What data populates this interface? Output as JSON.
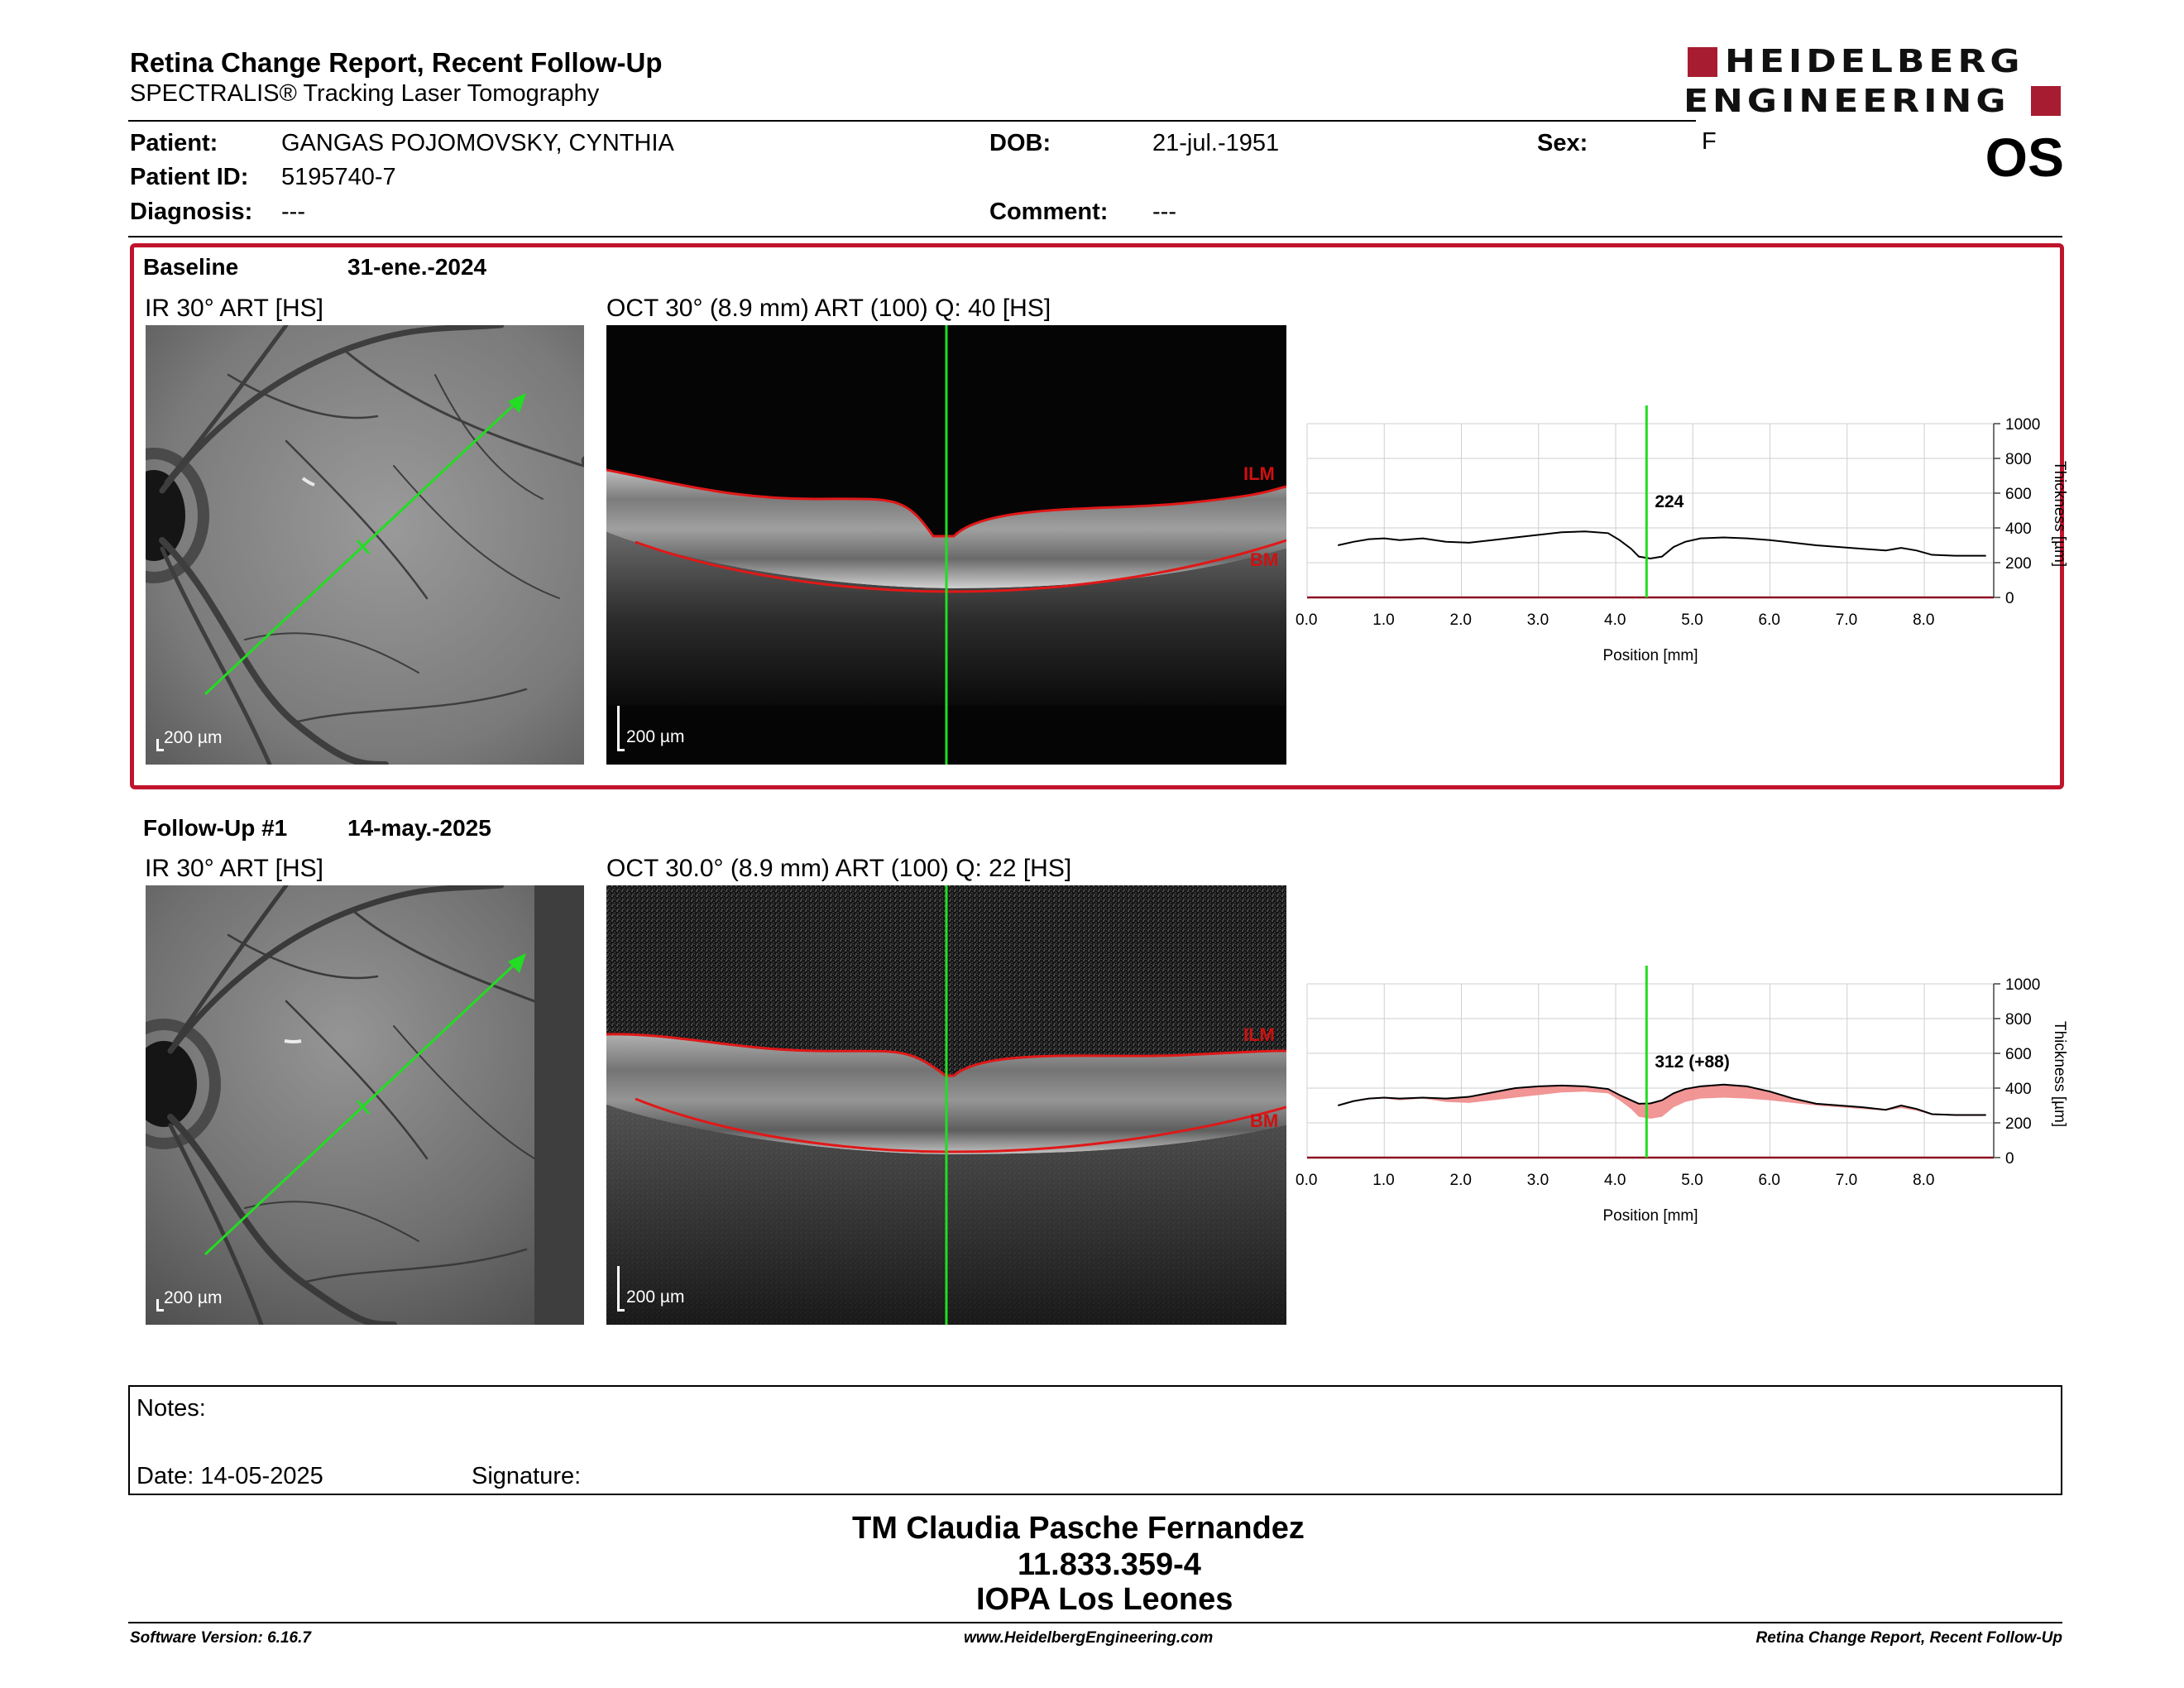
{
  "header": {
    "title": "Retina Change Report, Recent Follow-Up",
    "subtitle": "SPECTRALIS® Tracking Laser Tomography",
    "logo_line1": "HEIDELBERG",
    "logo_line2": "ENGINEERING",
    "eye": "OS"
  },
  "patient": {
    "patient_label": "Patient:",
    "patient_value": "GANGAS POJOMOVSKY, CYNTHIA",
    "id_label": "Patient ID:",
    "id_value": "5195740-7",
    "diagnosis_label": "Diagnosis:",
    "diagnosis_value": "---",
    "dob_label": "DOB:",
    "dob_value": "21-jul.-1951",
    "comment_label": "Comment:",
    "comment_value": "---",
    "sex_label": "Sex:",
    "sex_value": "F"
  },
  "baseline": {
    "label": "Baseline",
    "date": "31-ene.-2024",
    "ir_title": "IR 30° ART [HS]",
    "oct_title": "OCT 30° (8.9 mm) ART (100) Q: 40 [HS]",
    "scale": "200 µm",
    "ilm": "ILM",
    "bm": "BM"
  },
  "followup": {
    "label": "Follow-Up #1",
    "date": "14-may.-2025",
    "ir_title": "IR 30° ART [HS]",
    "oct_title": "OCT 30.0° (8.9 mm) ART (100) Q: 22 [HS]",
    "scale": "200 µm",
    "ilm": "ILM",
    "bm": "BM"
  },
  "chart_data": [
    {
      "type": "line",
      "xlabel": "Position [mm]",
      "ylabel": "Thickness [µm]",
      "xlim": [
        0,
        8.9
      ],
      "ylim": [
        0,
        1000
      ],
      "x_ticks": [
        "0.0",
        "1.0",
        "2.0",
        "3.0",
        "4.0",
        "5.0",
        "6.0",
        "7.0",
        "8.0"
      ],
      "y_ticks": [
        "0",
        "200",
        "400",
        "600",
        "800",
        "1000"
      ],
      "marker_x": 4.4,
      "marker_label": "224",
      "grid": true,
      "series": [
        {
          "x": [
            0.4,
            0.6,
            0.8,
            1.0,
            1.2,
            1.5,
            1.8,
            2.1,
            2.4,
            2.7,
            3.0,
            3.3,
            3.6,
            3.9,
            4.05,
            4.2,
            4.3,
            4.45,
            4.6,
            4.75,
            4.9,
            5.1,
            5.4,
            5.7,
            6.0,
            6.3,
            6.6,
            6.9,
            7.2,
            7.5,
            7.7,
            7.9,
            8.1,
            8.4,
            8.8
          ],
          "y": [
            300,
            320,
            335,
            340,
            330,
            340,
            320,
            315,
            330,
            345,
            360,
            375,
            380,
            370,
            330,
            280,
            235,
            224,
            235,
            290,
            320,
            340,
            345,
            340,
            330,
            315,
            300,
            290,
            280,
            270,
            285,
            270,
            245,
            240,
            240
          ]
        }
      ]
    },
    {
      "type": "line",
      "xlabel": "Position [mm]",
      "ylabel": "Thickness [µm]",
      "xlim": [
        0,
        8.9
      ],
      "ylim": [
        0,
        1000
      ],
      "x_ticks": [
        "0.0",
        "1.0",
        "2.0",
        "3.0",
        "4.0",
        "5.0",
        "6.0",
        "7.0",
        "8.0"
      ],
      "y_ticks": [
        "0",
        "200",
        "400",
        "600",
        "800",
        "1000"
      ],
      "marker_x": 4.4,
      "marker_label": "312 (+88)",
      "grid": true,
      "series": [
        {
          "name": "baseline",
          "x": [
            0.4,
            0.6,
            0.8,
            1.0,
            1.2,
            1.5,
            1.8,
            2.1,
            2.4,
            2.7,
            3.0,
            3.3,
            3.6,
            3.9,
            4.05,
            4.2,
            4.3,
            4.45,
            4.6,
            4.75,
            4.9,
            5.1,
            5.4,
            5.7,
            6.0,
            6.3,
            6.6,
            6.9,
            7.2,
            7.5,
            7.7,
            7.9,
            8.1,
            8.4,
            8.8
          ],
          "y": [
            300,
            320,
            335,
            340,
            330,
            340,
            320,
            315,
            330,
            345,
            360,
            375,
            380,
            370,
            330,
            280,
            235,
            224,
            235,
            290,
            320,
            340,
            345,
            340,
            330,
            315,
            300,
            290,
            280,
            270,
            285,
            270,
            245,
            240,
            240
          ]
        },
        {
          "name": "follow-up",
          "x": [
            0.4,
            0.6,
            0.8,
            1.0,
            1.2,
            1.5,
            1.8,
            2.1,
            2.4,
            2.7,
            3.0,
            3.3,
            3.6,
            3.9,
            4.05,
            4.2,
            4.3,
            4.45,
            4.6,
            4.75,
            4.9,
            5.1,
            5.4,
            5.7,
            6.0,
            6.3,
            6.6,
            6.9,
            7.2,
            7.5,
            7.7,
            7.9,
            8.1,
            8.4,
            8.8
          ],
          "y": [
            300,
            325,
            340,
            345,
            340,
            345,
            340,
            350,
            375,
            400,
            410,
            415,
            410,
            395,
            360,
            330,
            310,
            312,
            330,
            370,
            395,
            410,
            420,
            410,
            380,
            340,
            310,
            300,
            290,
            275,
            300,
            280,
            250,
            245,
            245
          ]
        }
      ]
    }
  ],
  "notes": {
    "notes_label": "Notes:",
    "date_label": "Date: 14-05-2025",
    "signature_label": "Signature:"
  },
  "operator": {
    "name": "TM Claudia Pasche Fernandez",
    "id": "11.833.359-4",
    "place": "IOPA Los Leones"
  },
  "footer": {
    "version": "Software Version: 6.16.7",
    "website": "www.HeidelbergEngineering.com",
    "report_name": "Retina Change Report, Recent Follow-Up"
  }
}
